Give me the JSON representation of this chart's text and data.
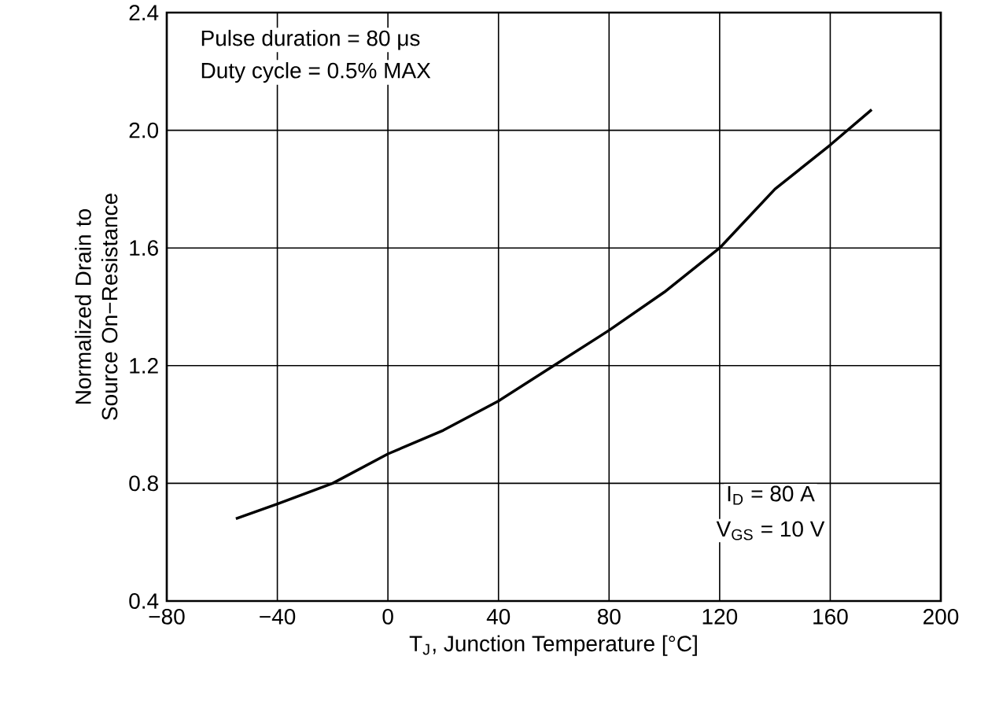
{
  "chart_data": {
    "type": "line",
    "xlabel": "T$_{J}$, Junction Temperature [°C]",
    "ylabel": "Normalized Drain to Source On−Resistance",
    "x": [
      -55,
      -40,
      -20,
      0,
      20,
      40,
      60,
      80,
      100,
      120,
      140,
      160,
      175
    ],
    "series": [
      {
        "color": "#000000",
        "values": [
          0.68,
          0.73,
          0.8,
          0.9,
          0.98,
          1.08,
          1.2,
          1.32,
          1.45,
          1.6,
          1.8,
          1.95,
          2.07
        ]
      }
    ],
    "xlim": [
      -80,
      200
    ],
    "ylim": [
      0.4,
      2.4
    ],
    "xticks": [
      {
        "value": -80,
        "label": "−80"
      },
      {
        "value": -40,
        "label": "−40"
      },
      0,
      40,
      80,
      120,
      160,
      200
    ],
    "yticks": [
      0.4,
      0.8,
      1.2,
      1.6,
      {
        "value": 2.0,
        "label": "2.0"
      },
      2.4
    ],
    "grid": true,
    "marker": "none",
    "line_style": "solid",
    "annotations": [
      "Pulse duration = 80 μs",
      "Duty cycle = 0.5% MAX",
      "I$_{D}$ = 80 A",
      "V$_{GS}$ = 10 V"
    ]
  }
}
